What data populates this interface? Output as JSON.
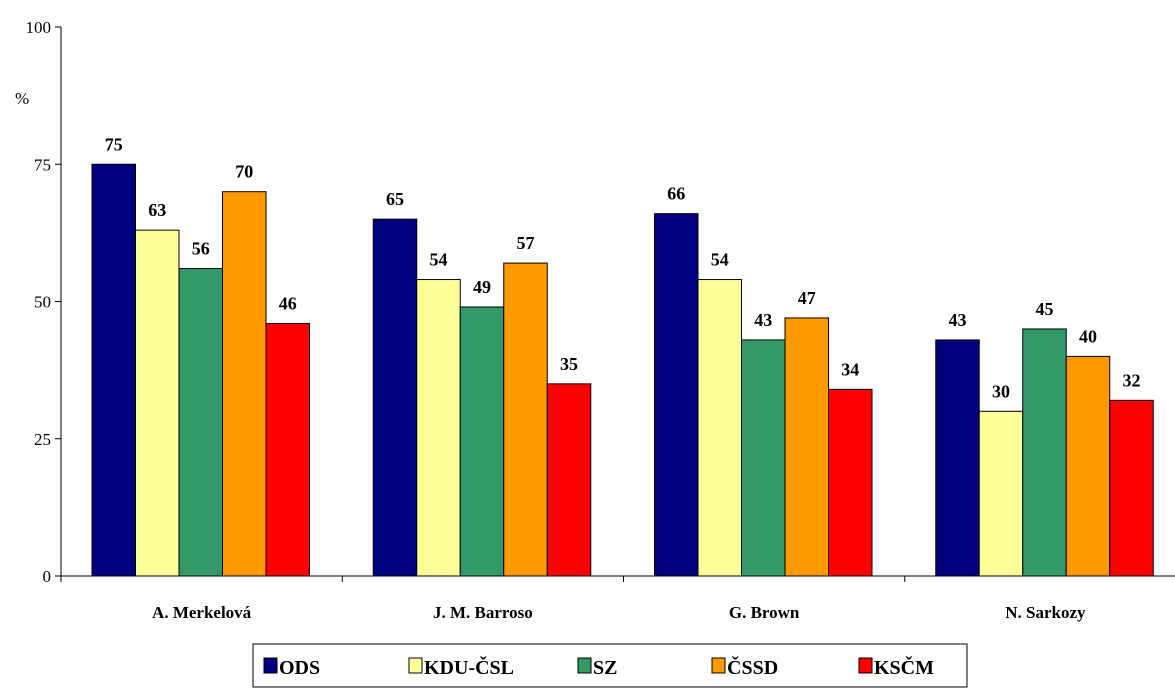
{
  "chart_data": {
    "type": "bar",
    "categories": [
      "A. Merkelová",
      "J. M. Barroso",
      "G. Brown",
      "N. Sarkozy"
    ],
    "series": [
      {
        "name": "ODS",
        "color": "#000080",
        "values": [
          75,
          65,
          66,
          43
        ]
      },
      {
        "name": "KDU-ČSL",
        "color": "#FFFF99",
        "values": [
          63,
          54,
          54,
          30
        ]
      },
      {
        "name": "SZ",
        "color": "#339966",
        "values": [
          56,
          49,
          43,
          45
        ]
      },
      {
        "name": "ČSSD",
        "color": "#FF9900",
        "values": [
          70,
          57,
          47,
          40
        ]
      },
      {
        "name": "KSČM",
        "color": "#FF0000",
        "values": [
          46,
          35,
          34,
          32
        ]
      }
    ],
    "ylabel": "%",
    "ylim": [
      0,
      100
    ],
    "yticks": [
      0,
      25,
      50,
      75,
      100
    ],
    "grid": false,
    "legend": "bottom"
  }
}
